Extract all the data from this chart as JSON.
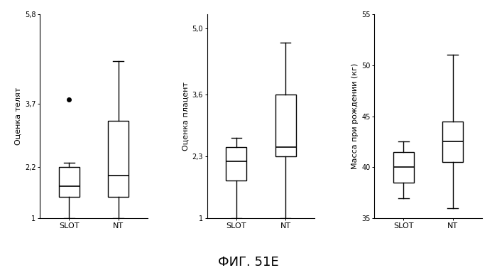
{
  "plot1": {
    "ylabel": "Оценка телят",
    "ylim": [
      1.0,
      5.8
    ],
    "yticks": [
      1.0,
      2.2,
      3.7,
      5.8
    ],
    "ytick_labels": [
      "1",
      "2,2",
      "3,7",
      "5,8"
    ],
    "SLOT": {
      "whislo": 1.0,
      "q1": 1.5,
      "med": 1.75,
      "q3": 2.2,
      "whishi": 2.3,
      "fliers": [
        3.8
      ]
    },
    "NT": {
      "whislo": 1.0,
      "q1": 1.5,
      "med": 2.0,
      "q3": 3.3,
      "whishi": 4.7,
      "fliers": []
    }
  },
  "plot2": {
    "ylabel": "Оценка плацент",
    "ylim": [
      1.0,
      5.3
    ],
    "yticks": [
      1.0,
      2.3,
      3.6,
      5.0
    ],
    "ytick_labels": [
      "1",
      "2,3",
      "3,6",
      "5,0"
    ],
    "SLOT": {
      "whislo": 1.0,
      "q1": 1.8,
      "med": 2.2,
      "q3": 2.5,
      "whishi": 2.7,
      "fliers": []
    },
    "NT": {
      "whislo": 1.0,
      "q1": 2.3,
      "med": 2.5,
      "q3": 3.6,
      "whishi": 4.7,
      "fliers": []
    }
  },
  "plot3": {
    "ylabel": "Масса при рождении (кг)",
    "ylim": [
      35,
      55
    ],
    "yticks": [
      35,
      40,
      45,
      50,
      55
    ],
    "ytick_labels": [
      "35",
      "40",
      "45",
      "50",
      "55"
    ],
    "SLOT": {
      "whislo": 37.0,
      "q1": 38.5,
      "med": 40.0,
      "q3": 41.5,
      "whishi": 42.5,
      "fliers": []
    },
    "NT": {
      "whislo": 36.0,
      "q1": 40.5,
      "med": 42.5,
      "q3": 44.5,
      "whishi": 51.0,
      "fliers": []
    }
  },
  "xlabel_groups": [
    "SLOT",
    "NT"
  ],
  "figure_title": "ФИГ. 51Е",
  "bg_color": "#ffffff",
  "box_color": "#ffffff",
  "edge_color": "#000000",
  "median_color": "#000000",
  "whisker_color": "#000000",
  "flier_color": "#000000",
  "title_fontsize": 13,
  "ylabel_fontsize": 8,
  "tick_fontsize": 7,
  "xlabel_fontsize": 8
}
